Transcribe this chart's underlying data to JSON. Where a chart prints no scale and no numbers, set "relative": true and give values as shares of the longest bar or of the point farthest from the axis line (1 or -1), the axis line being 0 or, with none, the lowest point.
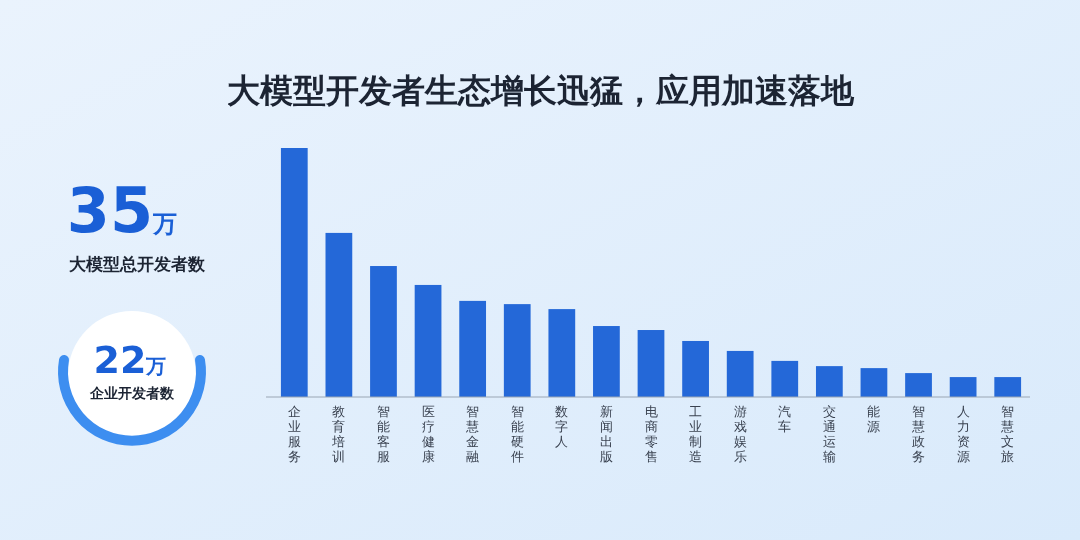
{
  "chart_data": [
    {
      "type": "bar",
      "title": "大模型开发者生态增长迅猛，应用加速落地",
      "relative": true,
      "color": "#2468d8",
      "categories": [
        "企业服务",
        "教育培训",
        "智能客服",
        "医疗健康",
        "智慧金融",
        "智能硬件",
        "数字人",
        "新闻出版",
        "电商零售",
        "工业制造",
        "游戏娱乐",
        "汽车",
        "交通运输",
        "能源",
        "智慧政务",
        "人力资源",
        "智慧文旅"
      ],
      "values": [
        1,
        0.659,
        0.526,
        0.45,
        0.386,
        0.373,
        0.353,
        0.285,
        0.269,
        0.225,
        0.185,
        0.145,
        0.124,
        0.116,
        0.096,
        0.08,
        0.08
      ]
    },
    {
      "type": "other",
      "annotations": [
        "35万",
        "大模型总开发者数",
        "22万",
        "企业开发者数"
      ]
    }
  ]
}
